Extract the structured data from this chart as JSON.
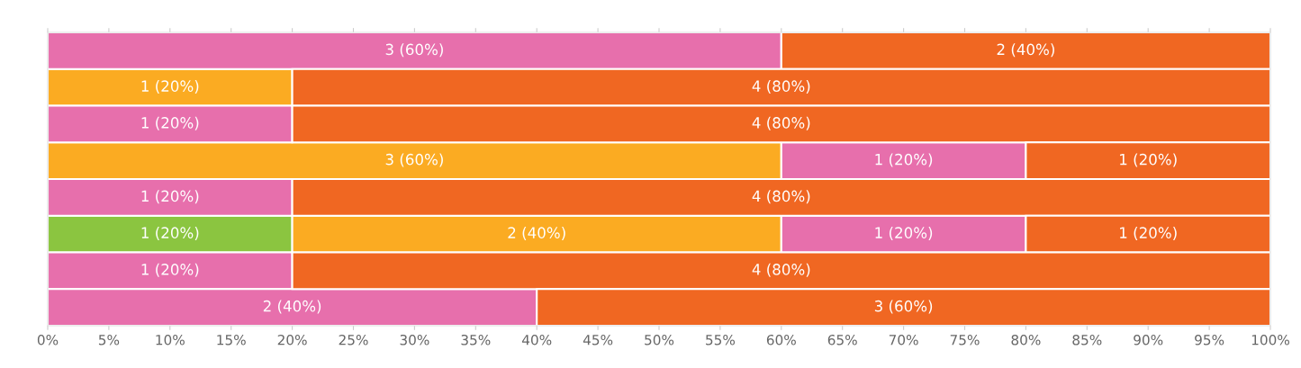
{
  "chart_data": {
    "type": "bar",
    "orientation": "horizontal",
    "stacked": true,
    "categories": [
      null,
      null,
      null,
      null,
      null,
      null,
      null,
      null
    ],
    "series": [
      {
        "color": "#8bc540",
        "values": [
          null,
          null,
          null,
          null,
          null,
          20,
          null,
          null
        ],
        "value_labels": [
          null,
          null,
          null,
          null,
          null,
          "1 (20%)",
          null,
          null
        ]
      },
      {
        "color": "#fbab22",
        "values": [
          null,
          20,
          null,
          60,
          null,
          40,
          null,
          null
        ],
        "value_labels": [
          null,
          "1 (20%)",
          null,
          "3 (60%)",
          null,
          "2 (40%)",
          null,
          null
        ]
      },
      {
        "color": "#e76fac",
        "values": [
          60,
          null,
          20,
          20,
          20,
          20,
          20,
          40
        ],
        "value_labels": [
          "3 (60%)",
          null,
          "1 (20%)",
          "1 (20%)",
          "1 (20%)",
          "1 (20%)",
          "1 (20%)",
          "2 (40%)"
        ]
      },
      {
        "color": "#f06722",
        "values": [
          40,
          80,
          80,
          20,
          80,
          20,
          80,
          60
        ],
        "value_labels": [
          "2 (40%)",
          "4 (80%)",
          "4 (80%)",
          "1 (20%)",
          "4 (80%)",
          "1 (20%)",
          "4 (80%)",
          "3 (60%)"
        ]
      }
    ],
    "xlim": [
      0,
      100
    ],
    "xticks": [
      {
        "value": 0,
        "label": "0%"
      },
      {
        "value": 5,
        "label": "5%"
      },
      {
        "value": 10,
        "label": "10%"
      },
      {
        "value": 15,
        "label": "15%"
      },
      {
        "value": 20,
        "label": "20%"
      },
      {
        "value": 25,
        "label": "25%"
      },
      {
        "value": 30,
        "label": "30%"
      },
      {
        "value": 35,
        "label": "35%"
      },
      {
        "value": 40,
        "label": "40%"
      },
      {
        "value": 45,
        "label": "45%"
      },
      {
        "value": 50,
        "label": "50%"
      },
      {
        "value": 55,
        "label": "55%"
      },
      {
        "value": 60,
        "label": "60%"
      },
      {
        "value": 65,
        "label": "65%"
      },
      {
        "value": 70,
        "label": "70%"
      },
      {
        "value": 75,
        "label": "75%"
      },
      {
        "value": 80,
        "label": "80%"
      },
      {
        "value": 85,
        "label": "85%"
      },
      {
        "value": 90,
        "label": "90%"
      },
      {
        "value": 95,
        "label": "95%"
      },
      {
        "value": 100,
        "label": "100%"
      }
    ],
    "tick_labels": "x",
    "grid": false,
    "legend": false
  }
}
